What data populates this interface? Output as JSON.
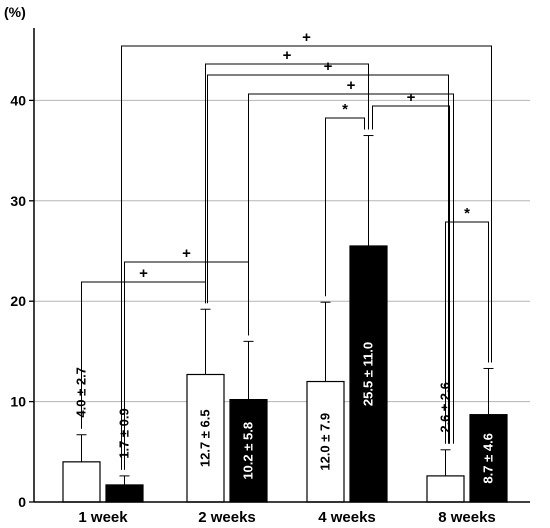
{
  "chart_data": {
    "type": "bar",
    "ylabel": "(%)",
    "ylim": [
      0,
      50
    ],
    "yticks": [
      "0",
      "10",
      "20",
      "30",
      "40"
    ],
    "grid": true,
    "categories": [
      "1 week",
      "2 weeks",
      "4 weeks",
      "8 weeks"
    ],
    "series": [
      {
        "fill": "#ffffff",
        "values": [
          4.0,
          12.7,
          12.0,
          2.6
        ],
        "errors": [
          2.7,
          6.5,
          7.9,
          2.6
        ],
        "labels": [
          "4.0 ± 2.7",
          "12.7 ± 6.5",
          "12.0 ± 7.9",
          "2.6 ± 2.6"
        ]
      },
      {
        "fill": "#000000",
        "values": [
          1.7,
          10.2,
          25.5,
          8.7
        ],
        "errors": [
          0.9,
          5.8,
          11.0,
          4.6
        ],
        "labels": [
          "1.7 ± 0.9",
          "10.2 ± 5.8",
          "25.5 ± 11.0",
          "8.7 ± 4.6"
        ]
      }
    ],
    "significance": [
      {
        "from": [
          0,
          0
        ],
        "to": [
          1,
          0
        ],
        "symbol": "+"
      },
      {
        "from": [
          0,
          1
        ],
        "to": [
          1,
          1
        ],
        "symbol": "+"
      },
      {
        "from": [
          2,
          0
        ],
        "to": [
          2,
          1
        ],
        "symbol": "*"
      },
      {
        "from": [
          1,
          1
        ],
        "to": [
          3,
          0
        ],
        "symbol": "+"
      },
      {
        "from": [
          2,
          1
        ],
        "to": [
          3,
          0
        ],
        "symbol": "+"
      },
      {
        "from": [
          1,
          0
        ],
        "to": [
          3,
          0
        ],
        "symbol": "+"
      },
      {
        "from": [
          1,
          0
        ],
        "to": [
          2,
          1
        ],
        "symbol": "+"
      },
      {
        "from": [
          0,
          1
        ],
        "to": [
          3,
          1
        ],
        "symbol": "+"
      },
      {
        "from": [
          3,
          0
        ],
        "to": [
          3,
          1
        ],
        "symbol": "*"
      }
    ]
  }
}
